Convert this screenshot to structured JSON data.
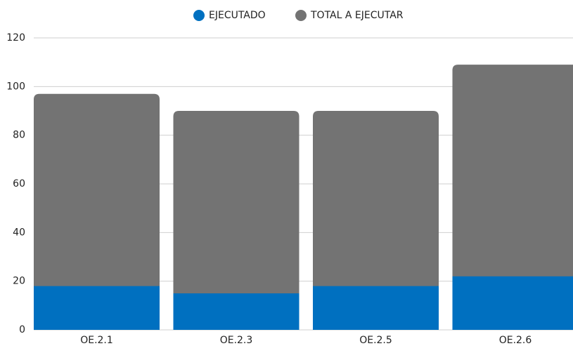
{
  "chart_data": {
    "type": "bar",
    "categories": [
      "OE.2.1",
      "OE.2.3",
      "OE.2.5",
      "OE.2.6"
    ],
    "series": [
      {
        "name": "EJECUTADO",
        "color": "#0070c0",
        "values": [
          18,
          15,
          18,
          22
        ]
      },
      {
        "name": "TOTAL A EJECUTAR",
        "color": "#737373",
        "values": [
          97,
          90,
          90,
          109
        ]
      }
    ],
    "ylim": [
      0,
      120
    ],
    "yticks": [
      0,
      20,
      40,
      60,
      80,
      100,
      120
    ],
    "grid": true,
    "legend": "top"
  }
}
